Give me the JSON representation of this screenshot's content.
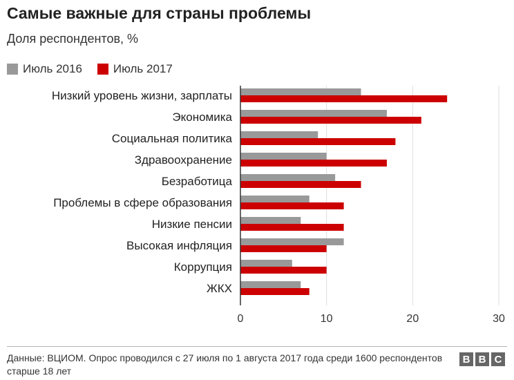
{
  "chart_data": {
    "type": "bar",
    "orientation": "horizontal",
    "title": "Самые важные для страны проблемы",
    "subtitle": "Доля респондентов, %",
    "categories": [
      "Низкий уровень жизни, зарплаты",
      "Экономика",
      "Социальная политика",
      "Здравоохранение",
      "Безработица",
      "Проблемы в сфере образования",
      "Низкие пенсии",
      "Высокая инфляция",
      "Коррупция",
      "ЖКХ"
    ],
    "series": [
      {
        "name": "Июль 2016",
        "color": "#999999",
        "values": [
          14,
          17,
          9,
          10,
          11,
          8,
          7,
          12,
          6,
          7
        ]
      },
      {
        "name": "Июль 2017",
        "color": "#cc0000",
        "values": [
          24,
          21,
          18,
          17,
          14,
          12,
          12,
          10,
          10,
          8
        ]
      }
    ],
    "xlim": [
      0,
      30
    ],
    "xticks": [
      0,
      10,
      20,
      30
    ],
    "grid": true,
    "legend_position": "top-left"
  },
  "footer": {
    "source": "Данные: ВЦИОМ. Опрос проводился с 27 июля по 1 августа 2017 года среди 1600 респондентов старше 18 лет",
    "logo_letters": [
      "B",
      "B",
      "C"
    ]
  }
}
